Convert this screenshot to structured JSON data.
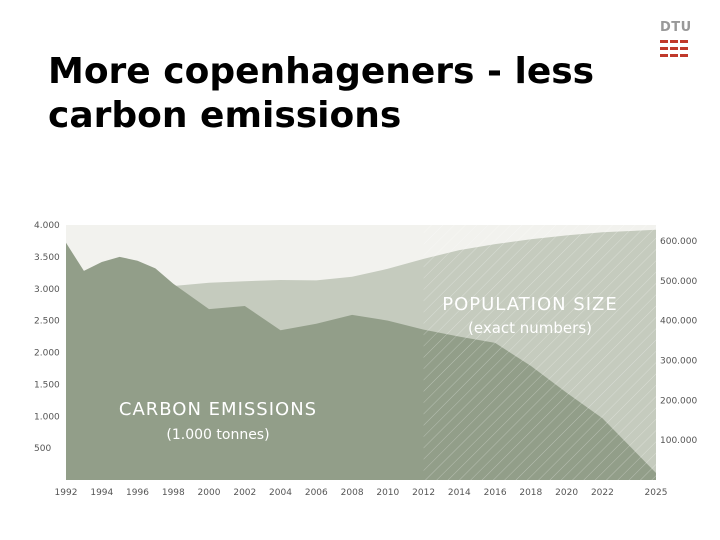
{
  "slide": {
    "title_line1": "More copenhageners - less",
    "title_line2": "carbon emissions",
    "logo_text": "DTU",
    "logo_color": "#c0392b"
  },
  "chart_data": {
    "type": "area",
    "x_ticks": [
      "1992",
      "1994",
      "1996",
      "1998",
      "2000",
      "2002",
      "2004",
      "2006",
      "2008",
      "2010",
      "2012",
      "2014",
      "2016",
      "2018",
      "2020",
      "2022",
      "2025"
    ],
    "left_axis": {
      "label": "",
      "ticks": [
        4000,
        3500,
        3000,
        2500,
        2000,
        1500,
        1000,
        500
      ],
      "tick_labels": [
        "4.000",
        "3.500",
        "3.000",
        "2.500",
        "2.000",
        "1.500",
        "1.000",
        "500"
      ],
      "range": [
        0,
        4000
      ]
    },
    "right_axis": {
      "label": "",
      "ticks": [
        600000,
        500000,
        400000,
        300000,
        200000,
        100000
      ],
      "tick_labels": [
        "600.000",
        "500.000",
        "400.000",
        "300.000",
        "200.000",
        "100.000"
      ],
      "range": [
        0,
        640000
      ]
    },
    "projection_from_year": 2012,
    "series": [
      {
        "name": "POPULATION SIZE",
        "sublabel": "(exact numbers)",
        "axis": "right",
        "color": "#c5cbbe",
        "x": [
          1992,
          1994,
          1996,
          1998,
          2000,
          2002,
          2004,
          2006,
          2008,
          2010,
          2012,
          2014,
          2016,
          2018,
          2020,
          2022,
          2025
        ],
        "values": [
          467000,
          467000,
          472000,
          487000,
          495000,
          499000,
          502000,
          501000,
          510000,
          530000,
          555000,
          577000,
          592000,
          604000,
          614000,
          622000,
          628000
        ]
      },
      {
        "name": "CARBON EMISSIONS",
        "sublabel": "(1.000 tonnes)",
        "axis": "left",
        "color": "#929e89",
        "x": [
          1992,
          1993,
          1994,
          1995,
          1996,
          1997,
          1998,
          2000,
          2002,
          2004,
          2006,
          2008,
          2010,
          2012,
          2014,
          2016,
          2018,
          2020,
          2022,
          2025
        ],
        "values": [
          3720,
          3280,
          3420,
          3500,
          3440,
          3320,
          3080,
          2680,
          2730,
          2350,
          2450,
          2590,
          2500,
          2360,
          2250,
          2150,
          1790,
          1370,
          970,
          110
        ]
      }
    ]
  }
}
